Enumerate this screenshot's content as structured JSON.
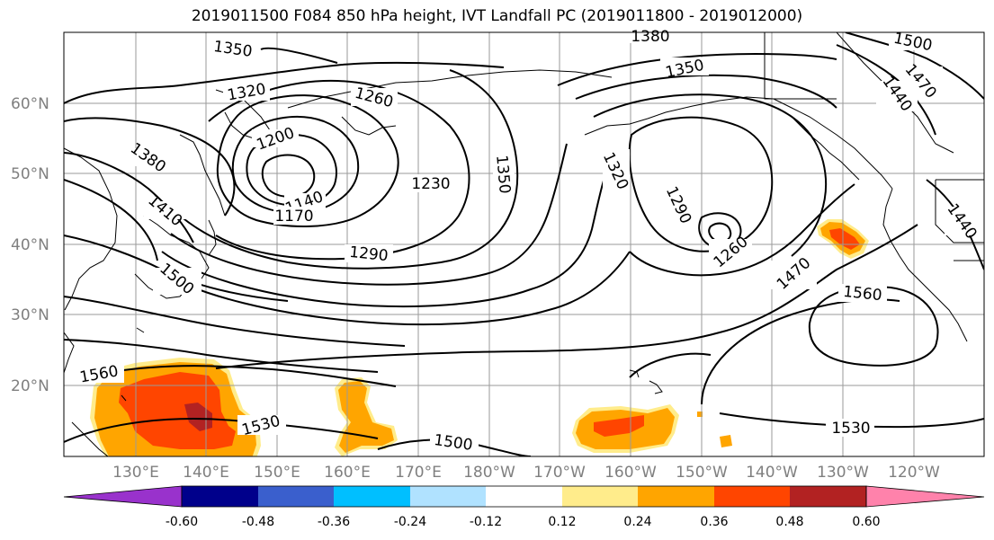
{
  "title": "2019011500 F084 850 hPa height, IVT Landfall PC (2019011800 - 2019012000)",
  "lat_labels": [
    "60°N",
    "50°N",
    "40°N",
    "30°N",
    "20°N"
  ],
  "lon_labels": [
    "130°E",
    "140°E",
    "150°E",
    "160°E",
    "170°E",
    "180°W",
    "170°W",
    "160°W",
    "150°W",
    "140°W",
    "130°W",
    "120°W"
  ],
  "contour_labels": {
    "l1350_nw": "1350",
    "l1320_nw": "1320",
    "l1260_nw": "1260",
    "l1200": "1200",
    "l1380_w": "1380",
    "l1410_w": "1410",
    "l1140": "1140",
    "l1170": "1170",
    "l1230": "1230",
    "l1290_c": "1290",
    "l1350_c": "1350",
    "l1380_top": "1380",
    "l1350_ne": "1350",
    "l1320_e": "1320",
    "l1290_e": "1290",
    "l1260_e": "1260",
    "l1500_ne": "1500",
    "l1470_ne": "1470",
    "l1440_ne": "1440",
    "l1440_e": "1440",
    "l1470_e": "1470",
    "l1560_e": "1560",
    "l1500_w": "1500",
    "l1560_sw": "1560",
    "l1530_sw": "1530",
    "l1500_s": "1500",
    "l1530_se": "1530"
  },
  "colorbar": {
    "colors": [
      "#9932cc",
      "#00008b",
      "#3a5fcd",
      "#00bfff",
      "#b0e2ff",
      "#ffffff",
      "#ffec8b",
      "#ffa500",
      "#ff4500",
      "#b22222",
      "#ff82ab"
    ],
    "ticks": [
      "-0.60",
      "-0.48",
      "-0.36",
      "-0.24",
      "-0.12",
      "0.12",
      "0.24",
      "0.36",
      "0.48",
      "0.60"
    ]
  }
}
